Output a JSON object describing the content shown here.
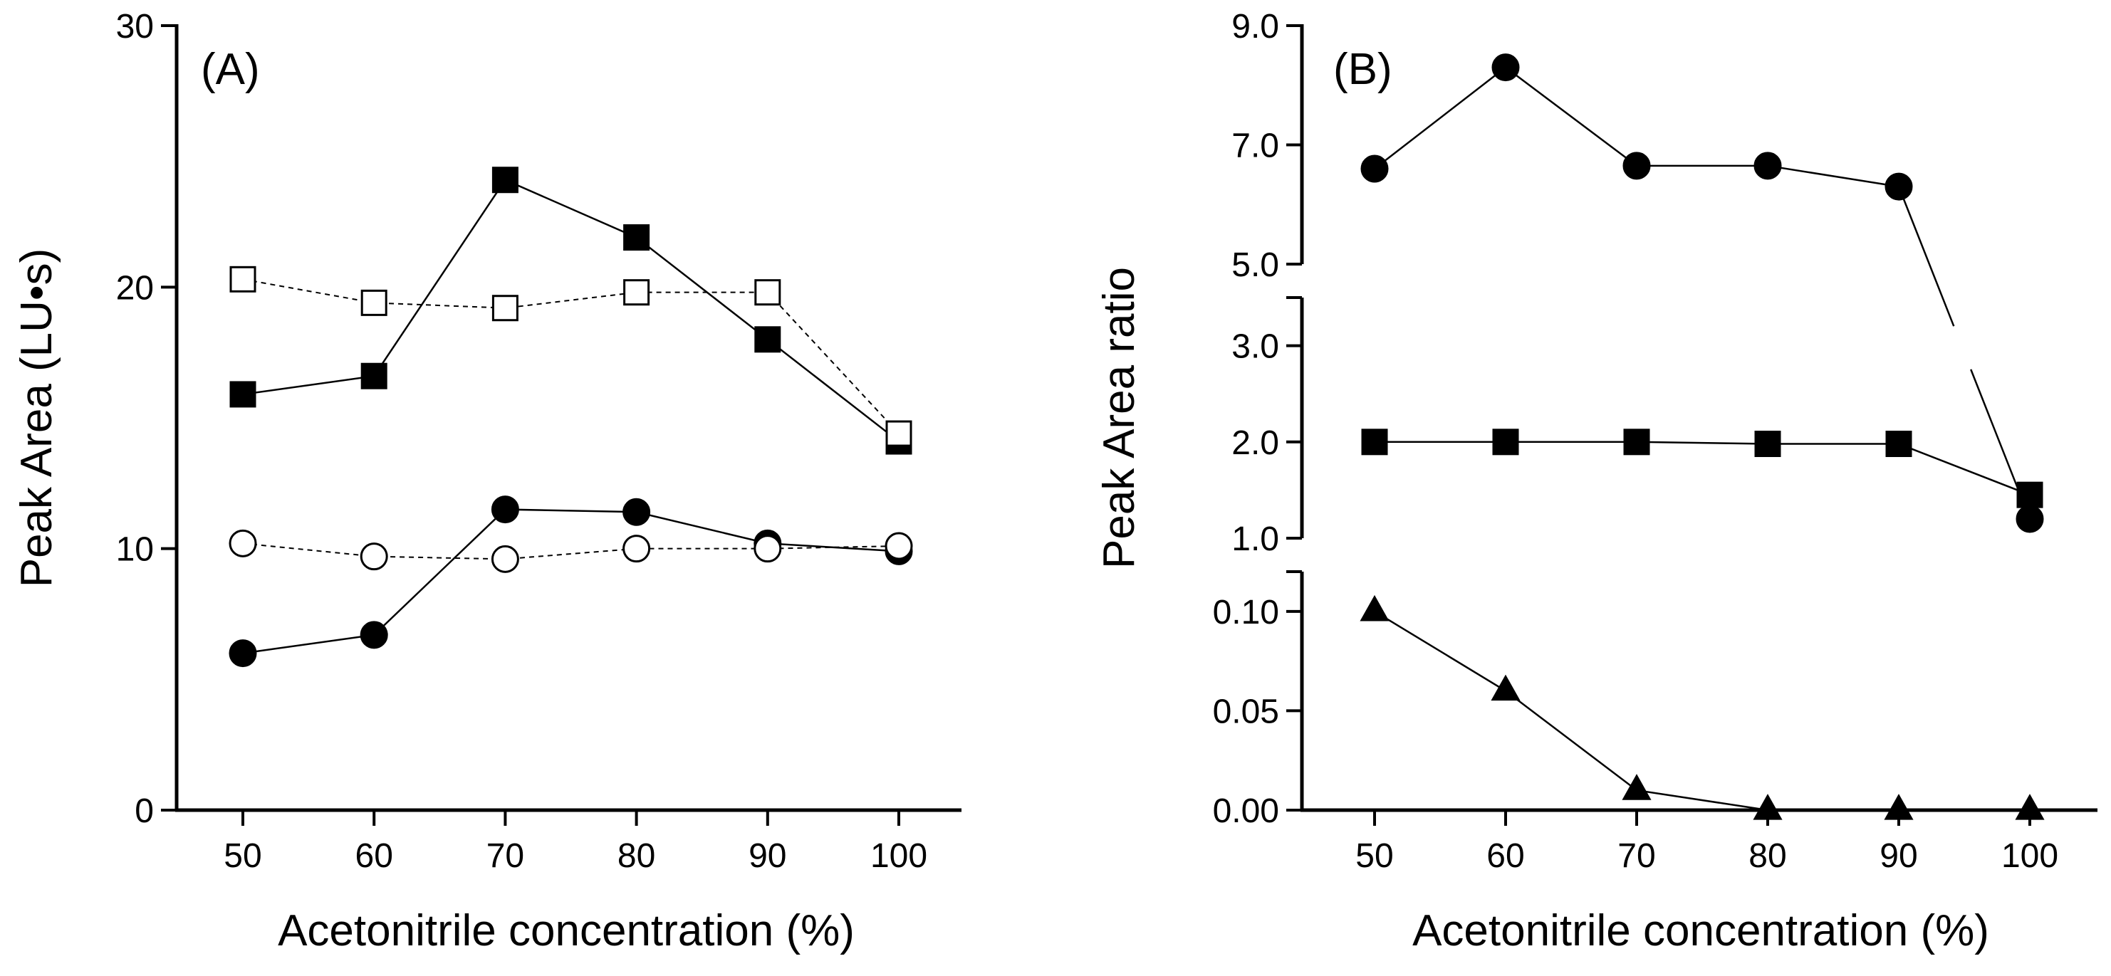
{
  "chart_data": [
    {
      "panel": "A",
      "type": "line",
      "panel_label": "(A)",
      "xlabel": "Acetonitrile concentration (%)",
      "ylabel": "Peak Area (LU•s)",
      "x": [
        50,
        60,
        70,
        80,
        90,
        100
      ],
      "x_ticks": [
        "50",
        "60",
        "70",
        "80",
        "90",
        "100"
      ],
      "ylim": [
        0,
        30
      ],
      "y_ticks": [
        "0",
        "10",
        "20",
        "30"
      ],
      "series": [
        {
          "name": "filled squares",
          "marker": "square",
          "fill": "filled",
          "line": "solid",
          "values": [
            15.9,
            16.6,
            24.1,
            21.9,
            18.0,
            14.1
          ]
        },
        {
          "name": "open squares",
          "marker": "square",
          "fill": "open",
          "line": "dashed",
          "values": [
            20.3,
            19.4,
            19.2,
            19.8,
            19.8,
            14.4
          ]
        },
        {
          "name": "filled circles",
          "marker": "circle",
          "fill": "filled",
          "line": "solid",
          "values": [
            6.0,
            6.7,
            11.5,
            11.4,
            10.2,
            9.9
          ]
        },
        {
          "name": "open circles",
          "marker": "circle",
          "fill": "open",
          "line": "dashed",
          "values": [
            10.2,
            9.7,
            9.6,
            10.0,
            10.0,
            10.1
          ]
        }
      ]
    },
    {
      "panel": "B",
      "type": "line",
      "panel_label": "(B)",
      "xlabel": "Acetonitrile concentration (%)",
      "ylabel": "Peak Area ratio",
      "x": [
        50,
        60,
        70,
        80,
        90,
        100
      ],
      "x_ticks": [
        "50",
        "60",
        "70",
        "80",
        "90",
        "100"
      ],
      "broken_axis": true,
      "segments": [
        {
          "name": "upper",
          "ylim": [
            5.0,
            9.0
          ],
          "y_ticks": [
            "5.0",
            "7.0",
            "9.0"
          ]
        },
        {
          "name": "middle",
          "ylim": [
            1.0,
            3.5
          ],
          "y_ticks": [
            "1.0",
            "2.0",
            "3.0"
          ]
        },
        {
          "name": "lower",
          "ylim": [
            0.0,
            0.12
          ],
          "y_ticks": [
            "0.00",
            "0.05",
            "0.10"
          ]
        }
      ],
      "series": [
        {
          "name": "circles",
          "marker": "circle",
          "fill": "filled",
          "line": "solid",
          "values": [
            6.6,
            8.3,
            6.65,
            6.65,
            6.3,
            1.2
          ]
        },
        {
          "name": "squares",
          "marker": "square",
          "fill": "filled",
          "line": "solid",
          "values": [
            2.0,
            2.0,
            2.0,
            1.98,
            1.98,
            1.45
          ]
        },
        {
          "name": "triangles",
          "marker": "triangle",
          "fill": "filled",
          "line": "solid",
          "values": [
            0.1,
            0.06,
            0.01,
            0.0,
            0.0,
            0.0
          ]
        }
      ]
    }
  ]
}
